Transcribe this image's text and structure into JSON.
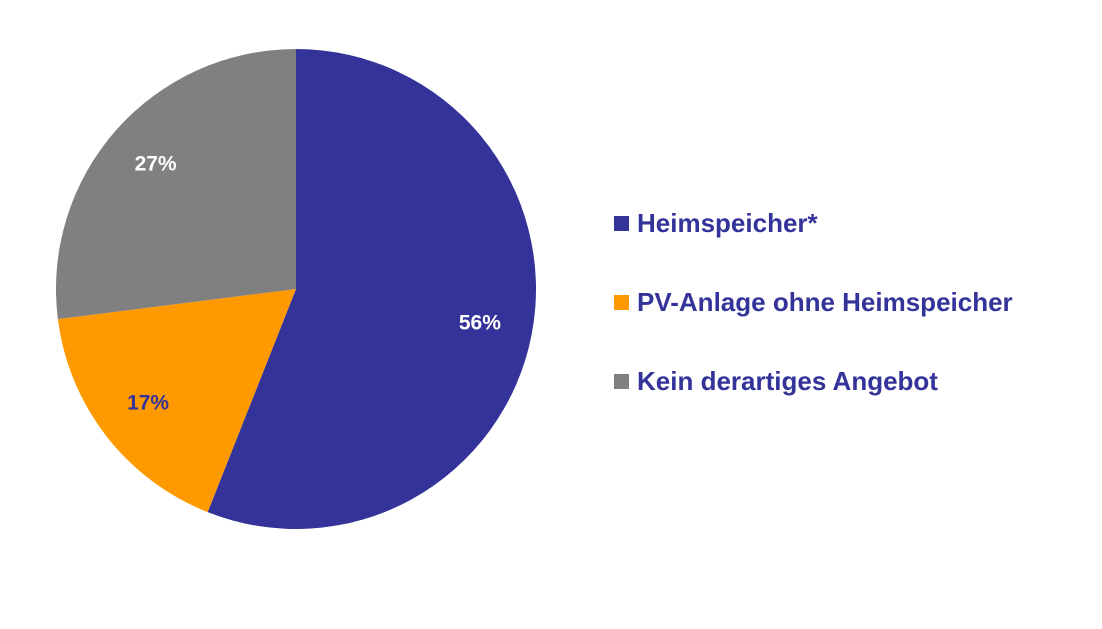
{
  "chart_data": {
    "type": "pie",
    "title": "",
    "start_angle_deg": 0,
    "direction": "clockwise",
    "slices": [
      {
        "label": "Heimspeicher*",
        "value": 56,
        "display": "56%",
        "color": "#333399",
        "label_color": "#ffffff"
      },
      {
        "label": "PV-Anlage ohne Heimspeicher",
        "value": 17,
        "display": "17%",
        "color": "#ff9900",
        "label_color": "#333399"
      },
      {
        "label": "Kein derartiges Angebot",
        "value": 27,
        "display": "27%",
        "color": "#808080",
        "label_color": "#ffffff"
      }
    ],
    "legend_position": "right",
    "legend_text_color": "#333399"
  }
}
